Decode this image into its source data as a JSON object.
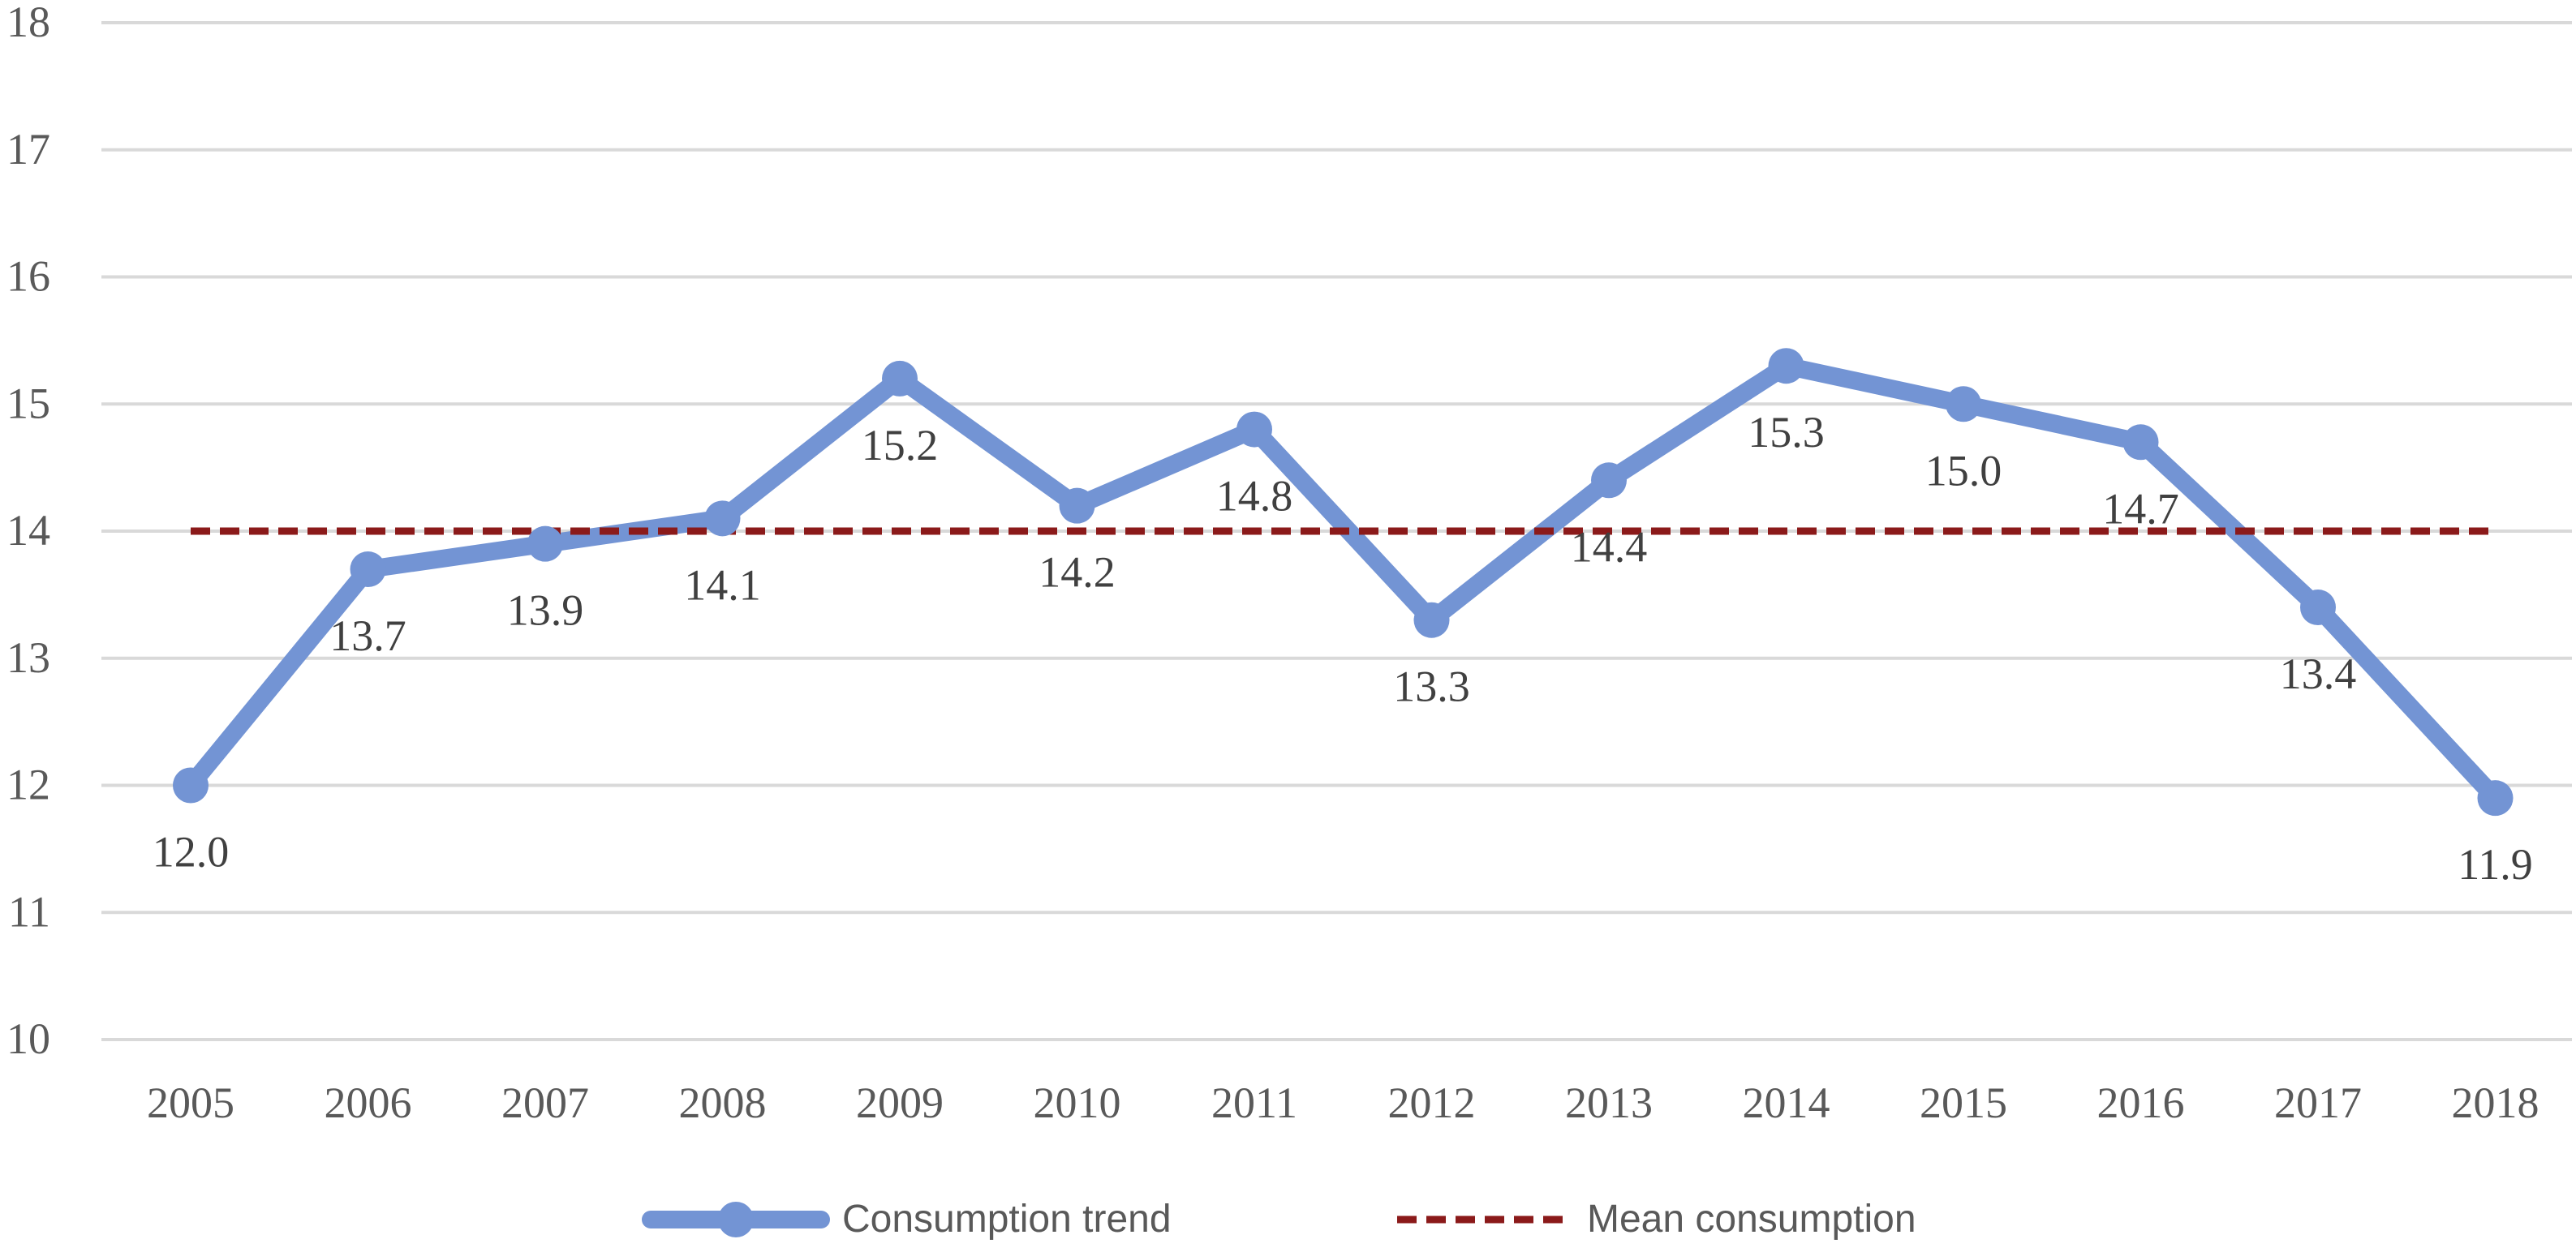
{
  "chart_data": {
    "type": "line",
    "title": "",
    "xlabel": "",
    "ylabel": "",
    "categories": [
      "2005",
      "2006",
      "2007",
      "2008",
      "2009",
      "2010",
      "2011",
      "2012",
      "2013",
      "2014",
      "2015",
      "2016",
      "2017",
      "2018"
    ],
    "series": [
      {
        "name": "Consumption trend",
        "values": [
          12.0,
          13.7,
          13.9,
          14.1,
          15.2,
          14.2,
          14.8,
          13.3,
          14.4,
          15.3,
          15.0,
          14.7,
          13.4,
          11.9
        ],
        "labels": [
          "12.0",
          "13.7",
          "13.9",
          "14.1",
          "15.2",
          "14.2",
          "14.8",
          "13.3",
          "14.4",
          "15.3",
          "15.0",
          "14.7",
          "13.4",
          "11.9"
        ],
        "color": "#7394d4",
        "marker": "circle"
      },
      {
        "name": "Mean consumption",
        "values": [
          14.0,
          14.0,
          14.0,
          14.0,
          14.0,
          14.0,
          14.0,
          14.0,
          14.0,
          14.0,
          14.0,
          14.0,
          14.0,
          14.0
        ],
        "color": "#8b1a1a",
        "style": "dashed"
      }
    ],
    "ylim": [
      10,
      18
    ],
    "yticks": [
      "10",
      "11",
      "12",
      "13",
      "14",
      "15",
      "16",
      "17",
      "18"
    ],
    "grid": true,
    "legend": "bottom-center",
    "colors": {
      "grid": "#d9d9d9",
      "tick_text": "#595959",
      "label_text": "#404040"
    }
  }
}
